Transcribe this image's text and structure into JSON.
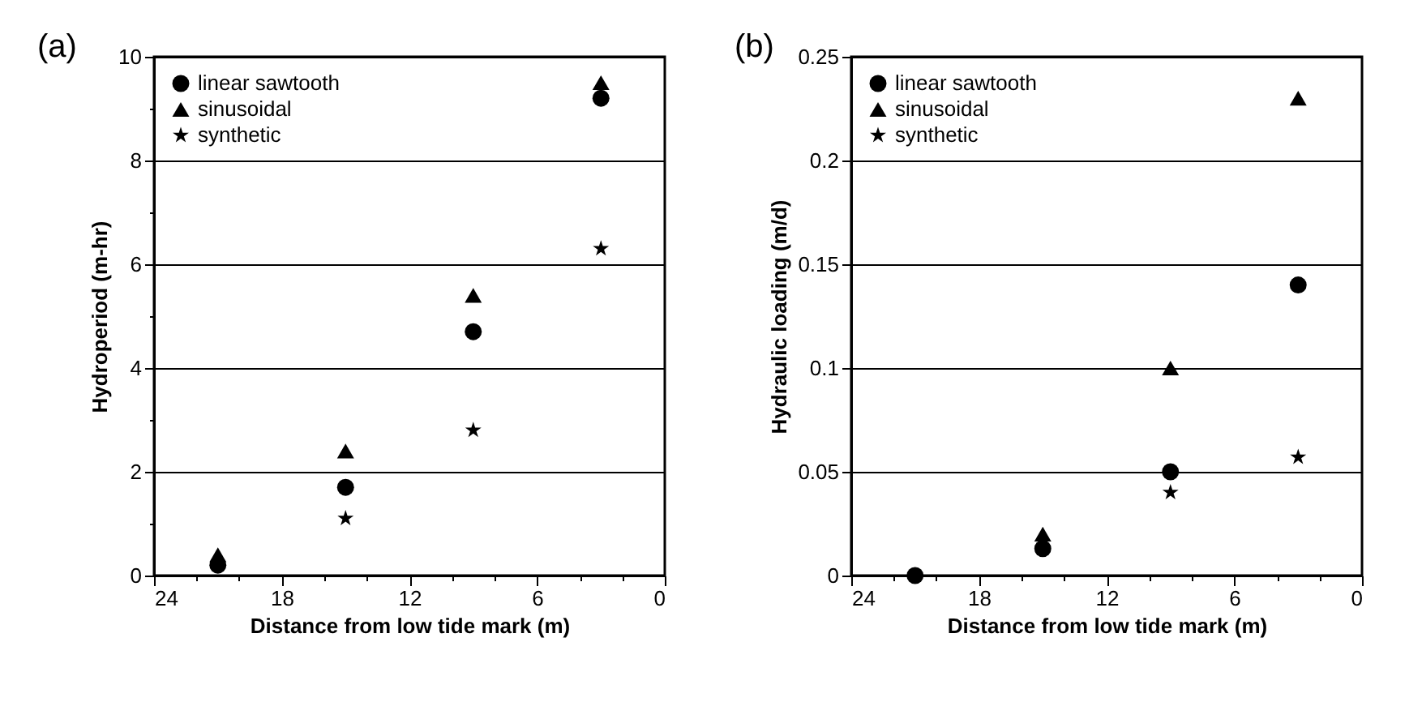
{
  "chart_data": [
    {
      "type": "scatter",
      "title": "(a)",
      "xlabel": "Distance from low tide mark (m)",
      "ylabel": "Hydroperiod (m-hr)",
      "x": [
        21,
        15,
        9,
        3
      ],
      "series": [
        {
          "name": "linear sawtooth",
          "color": "#000000",
          "marker": "circle",
          "values": [
            0.2,
            1.7,
            4.7,
            9.2
          ]
        },
        {
          "name": "sinusoidal",
          "color": "#000000",
          "marker": "triangle",
          "values": [
            0.4,
            2.4,
            5.4,
            9.5
          ]
        },
        {
          "name": "synthetic",
          "color": "#000000",
          "marker": "star",
          "values": [
            null,
            1.1,
            2.8,
            6.3
          ]
        }
      ],
      "xlim": [
        24,
        0
      ],
      "xticks": [
        24,
        {
          "value": 22,
          "label": null
        },
        {
          "value": 20,
          "label": null
        },
        18,
        {
          "value": 16,
          "label": null
        },
        {
          "value": 14,
          "label": null
        },
        12,
        {
          "value": 10,
          "label": null
        },
        {
          "value": 8,
          "label": null
        },
        6,
        {
          "value": 4,
          "label": null
        },
        {
          "value": 2,
          "label": null
        },
        0
      ],
      "ylim": [
        0,
        10
      ],
      "yticks": [
        0,
        {
          "value": 1,
          "label": null
        },
        2,
        {
          "value": 3,
          "label": null
        },
        4,
        {
          "value": 5,
          "label": null
        },
        6,
        {
          "value": 7,
          "label": null
        },
        8,
        {
          "value": 9,
          "label": null
        },
        10
      ],
      "grid": "y",
      "legend": "top left"
    },
    {
      "type": "scatter",
      "title": "(b)",
      "xlabel": "Distance from low tide mark (m)",
      "ylabel": "Hydraulic loading (m/d)",
      "x": [
        21,
        15,
        9,
        3
      ],
      "series": [
        {
          "name": "linear sawtooth",
          "color": "#000000",
          "marker": "circle",
          "values": [
            0,
            0.013,
            0.05,
            0.14
          ]
        },
        {
          "name": "sinusoidal",
          "color": "#000000",
          "marker": "triangle",
          "values": [
            null,
            0.02,
            0.1,
            0.23
          ]
        },
        {
          "name": "synthetic",
          "color": "#000000",
          "marker": "star",
          "values": [
            null,
            null,
            0.04,
            0.057
          ]
        }
      ],
      "xlim": [
        24,
        0
      ],
      "xticks": [
        24,
        {
          "value": 22,
          "label": null
        },
        {
          "value": 20,
          "label": null
        },
        18,
        {
          "value": 16,
          "label": null
        },
        {
          "value": 14,
          "label": null
        },
        12,
        {
          "value": 10,
          "label": null
        },
        {
          "value": 8,
          "label": null
        },
        6,
        {
          "value": 4,
          "label": null
        },
        {
          "value": 2,
          "label": null
        },
        0
      ],
      "ylim": [
        0,
        0.25
      ],
      "yticks": [
        0,
        0.05,
        0.1,
        0.15,
        0.2,
        0.25
      ],
      "grid": "y",
      "legend": "top left"
    }
  ]
}
